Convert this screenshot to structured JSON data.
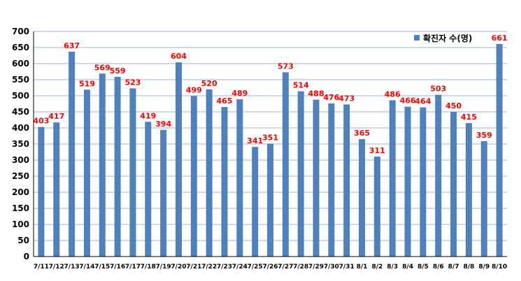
{
  "chart_data": {
    "type": "bar",
    "title": "",
    "xlabel": "",
    "ylabel": "",
    "ylim": [
      0,
      700
    ],
    "yticks": [
      0,
      50,
      100,
      150,
      200,
      250,
      300,
      350,
      400,
      450,
      500,
      550,
      600,
      650,
      700
    ],
    "grid": true,
    "legend_position": "top-right",
    "categories": [
      "7/11",
      "7/12",
      "7/13",
      "7/14",
      "7/15",
      "7/16",
      "7/17",
      "7/18",
      "7/19",
      "7/20",
      "7/21",
      "7/22",
      "7/23",
      "7/24",
      "7/25",
      "7/26",
      "7/27",
      "7/28",
      "7/29",
      "7/30",
      "7/31",
      "8/1",
      "8/2",
      "8/3",
      "8/4",
      "8/5",
      "8/6",
      "8/7",
      "8/8",
      "8/9",
      "8/10"
    ],
    "series": [
      {
        "name": "확진자 수(명)",
        "values": [
          403,
          417,
          637,
          519,
          569,
          559,
          523,
          419,
          394,
          604,
          499,
          520,
          465,
          489,
          341,
          351,
          573,
          514,
          488,
          476,
          473,
          365,
          311,
          486,
          466,
          464,
          503,
          450,
          415,
          359,
          661
        ]
      }
    ],
    "colors": {
      "bar": "#4f81bd",
      "data_label": "#ff0000",
      "grid": "#9fb3d1"
    }
  }
}
